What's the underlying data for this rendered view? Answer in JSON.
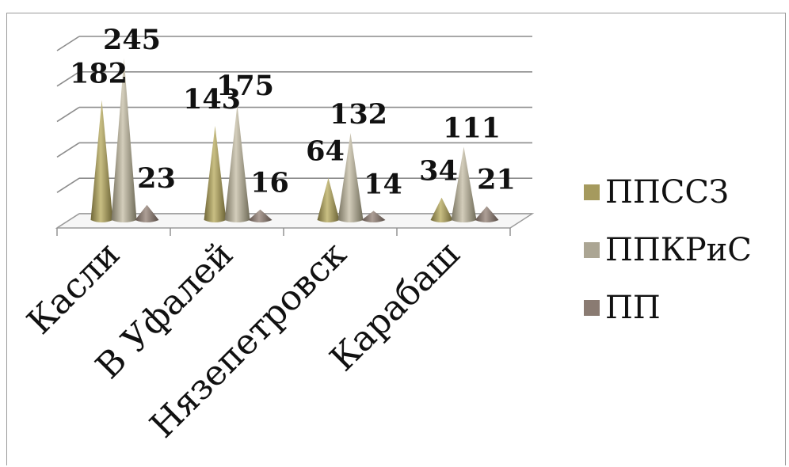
{
  "chart_data": {
    "type": "bar",
    "style": "3d-cone",
    "categories": [
      "Касли",
      "В Уфалей",
      "Нязепетровск",
      "Карабаш"
    ],
    "series": [
      {
        "name": "ППССЗ",
        "values": [
          182,
          143,
          64,
          34
        ],
        "color": "#a59a5e"
      },
      {
        "name": "ППКРиС",
        "values": [
          245,
          175,
          132,
          111
        ],
        "color": "#aba593"
      },
      {
        "name": "ПП",
        "values": [
          23,
          16,
          14,
          21
        ],
        "color": "#8a7b72"
      }
    ],
    "ylim": [
      0,
      250
    ],
    "grid": true,
    "legend": "right"
  }
}
